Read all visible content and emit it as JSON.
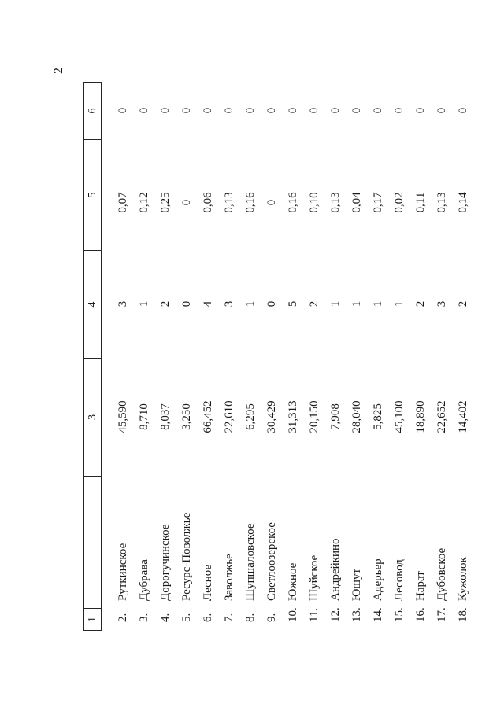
{
  "page": {
    "number": "2"
  },
  "table": {
    "header": [
      "1",
      "",
      "3",
      "4",
      "5",
      "6"
    ],
    "rows": [
      {
        "num": "2.",
        "name": "Руткинское",
        "c3": "45,590",
        "c4": "3",
        "c5": "0,07",
        "c6": "0"
      },
      {
        "num": "3.",
        "name": "Дубрава",
        "c3": "8,710",
        "c4": "1",
        "c5": "0,12",
        "c6": "0"
      },
      {
        "num": "4.",
        "name": "Дорогучинское",
        "c3": "8,037",
        "c4": "2",
        "c5": "0,25",
        "c6": "0"
      },
      {
        "num": "5.",
        "name": "Ресурс-Поволжье",
        "c3": "3,250",
        "c4": "0",
        "c5": "0",
        "c6": "0"
      },
      {
        "num": "6.",
        "name": "Лесное",
        "c3": "66,452",
        "c4": "4",
        "c5": "0,06",
        "c6": "0"
      },
      {
        "num": "7.",
        "name": "Заволжье",
        "c3": "22,610",
        "c4": "3",
        "c5": "0,13",
        "c6": "0"
      },
      {
        "num": "8.",
        "name": "Шупшаловское",
        "c3": "6,295",
        "c4": "1",
        "c5": "0,16",
        "c6": "0"
      },
      {
        "num": "9.",
        "name": "Светлоозерское",
        "c3": "30,429",
        "c4": "0",
        "c5": "0",
        "c6": "0"
      },
      {
        "num": "10.",
        "name": "Южное",
        "c3": "31,313",
        "c4": "5",
        "c5": "0,16",
        "c6": "0"
      },
      {
        "num": "11.",
        "name": "Шуйское",
        "c3": "20,150",
        "c4": "2",
        "c5": "0,10",
        "c6": "0"
      },
      {
        "num": "12.",
        "name": "Андрейкино",
        "c3": "7,908",
        "c4": "1",
        "c5": "0,13",
        "c6": "0"
      },
      {
        "num": "13.",
        "name": "Юшут",
        "c3": "28,040",
        "c4": "1",
        "c5": "0,04",
        "c6": "0"
      },
      {
        "num": "14.",
        "name": "Адерьер",
        "c3": "5,825",
        "c4": "1",
        "c5": "0,17",
        "c6": "0"
      },
      {
        "num": "15.",
        "name": "Лесовод",
        "c3": "45,100",
        "c4": "1",
        "c5": "0,02",
        "c6": "0"
      },
      {
        "num": "16.",
        "name": "Нарат",
        "c3": "18,890",
        "c4": "2",
        "c5": "0,11",
        "c6": "0"
      },
      {
        "num": "17.",
        "name": "Дубовское",
        "c3": "22,652",
        "c4": "3",
        "c5": "0,13",
        "c6": "0"
      },
      {
        "num": "18.",
        "name": "Кужолок",
        "c3": "14,402",
        "c4": "2",
        "c5": "0,14",
        "c6": "0"
      }
    ]
  }
}
